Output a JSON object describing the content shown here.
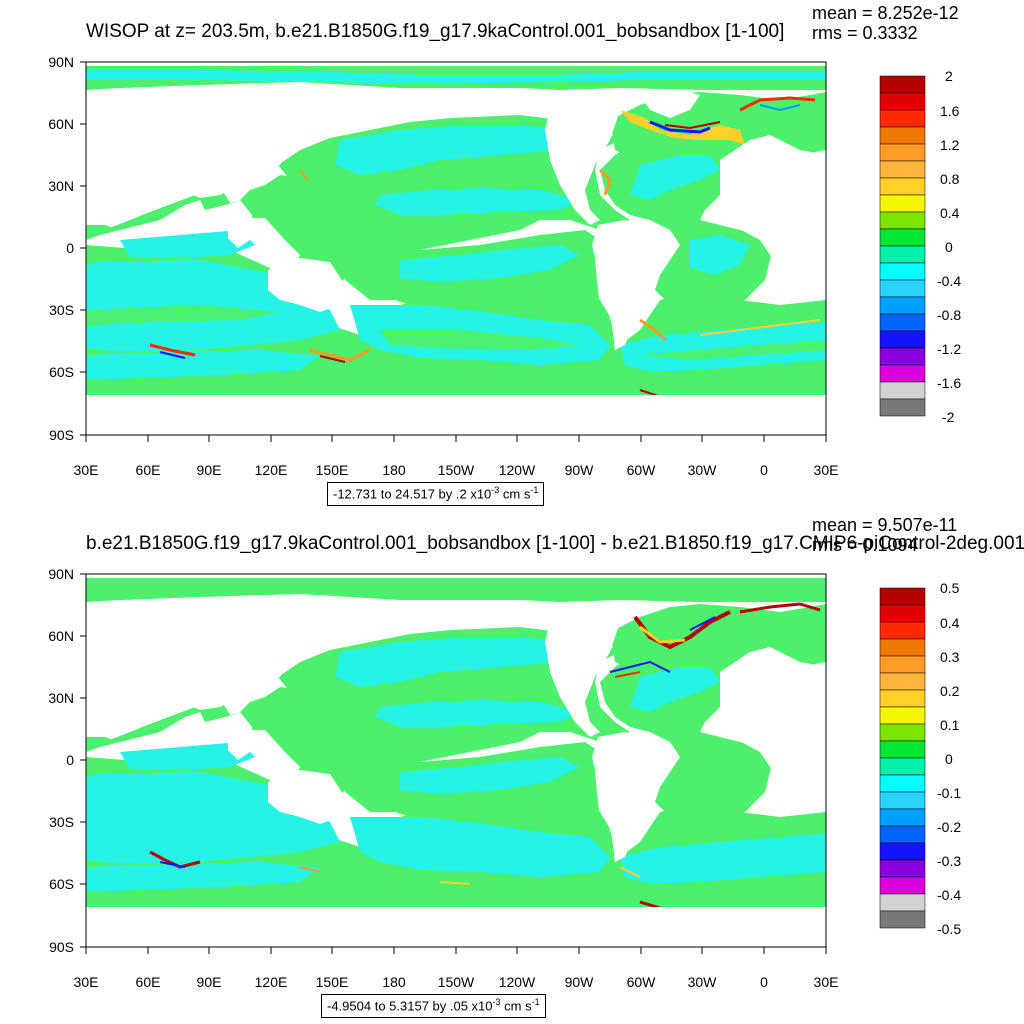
{
  "colors": {
    "ocean_base": "#4cf06c",
    "ocean_cyan": "#26f2e6",
    "land": "#ffffff",
    "frame": "#000000",
    "colorbar_top": [
      "#b40000",
      "#dc0000",
      "#ff2a00",
      "#f07800",
      "#ff9a28",
      "#ffb43c",
      "#ffd02a",
      "#f6f600",
      "#7ae600",
      "#00e632",
      "#00f0aa",
      "#00ffff",
      "#2ad2ff",
      "#00a0ff",
      "#0064ff",
      "#1414ff",
      "#8c00dc",
      "#dc00dc",
      "#d2d2d2",
      "#787878"
    ]
  },
  "panels": [
    {
      "title": "WISOP at z= 203.5m, b.e21.B1850G.f19_g17.9kaControl.001_bobsandbox [1-100]",
      "mean": "mean = 8.252e-12",
      "rms": "rms = 0.3332",
      "y_labels": [
        "90N",
        "60N",
        "30N",
        "0",
        "30S",
        "60S",
        "90S"
      ],
      "x_labels": [
        "30E",
        "60E",
        "90E",
        "120E",
        "150E",
        "180",
        "150W",
        "120W",
        "90W",
        "60W",
        "30W",
        "0",
        "30E"
      ],
      "info_range": "-12.731 to 24.517 by .2 x10",
      "info_exp": "-3",
      "info_unit": " cm s",
      "info_unit_exp": "-1",
      "colorbar_labels": [
        "2",
        "1.6",
        "1.2",
        "0.8",
        "0.4",
        "0",
        "-0.4",
        "-0.8",
        "-1.2",
        "-1.6",
        "-2"
      ]
    },
    {
      "title": "b.e21.B1850G.f19_g17.9kaControl.001_bobsandbox [1-100] - b.e21.B1850.f19_g17.CMIP6-piControl-2deg.001",
      "mean": "mean = 9.507e-11",
      "rms": "rms = 0.1094",
      "y_labels": [
        "90N",
        "60N",
        "30N",
        "0",
        "30S",
        "60S",
        "90S"
      ],
      "x_labels": [
        "30E",
        "60E",
        "90E",
        "120E",
        "150E",
        "180",
        "150W",
        "120W",
        "90W",
        "60W",
        "30W",
        "0",
        "30E"
      ],
      "info_range": "-4.9504 to 5.3157 by .05 x10",
      "info_exp": "-3",
      "info_unit": " cm s",
      "info_unit_exp": "-1",
      "colorbar_labels": [
        "0.5",
        "0.4",
        "0.3",
        "0.2",
        "0.1",
        "0",
        "-0.1",
        "-0.2",
        "-0.3",
        "-0.4",
        "-0.5"
      ]
    }
  ]
}
